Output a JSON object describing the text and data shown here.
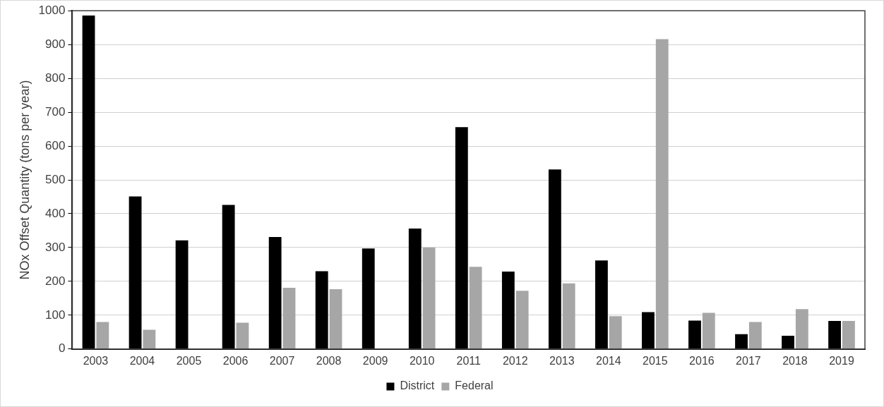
{
  "chart_data": {
    "type": "bar",
    "ylabel": "NOx Offset Quantity (tons per year)",
    "categories": [
      "2003",
      "2004",
      "2005",
      "2006",
      "2007",
      "2008",
      "2009",
      "2010",
      "2011",
      "2012",
      "2013",
      "2014",
      "2015",
      "2016",
      "2017",
      "2018",
      "2019"
    ],
    "series": [
      {
        "name": "District",
        "color": "#000000",
        "values": [
          986,
          451,
          321,
          426,
          331,
          230,
          297,
          356,
          656,
          229,
          531,
          262,
          109,
          84,
          44,
          39,
          83
        ]
      },
      {
        "name": "Federal",
        "color": "#a6a6a6",
        "values": [
          80,
          57,
          null,
          78,
          181,
          177,
          null,
          300,
          243,
          172,
          194,
          97,
          916,
          107,
          80,
          118,
          83
        ]
      }
    ],
    "ylim": [
      0,
      1000
    ],
    "yticks": [
      0,
      100,
      200,
      300,
      400,
      500,
      600,
      700,
      800,
      900,
      1000
    ],
    "grid": "y",
    "legend": "bottom"
  }
}
